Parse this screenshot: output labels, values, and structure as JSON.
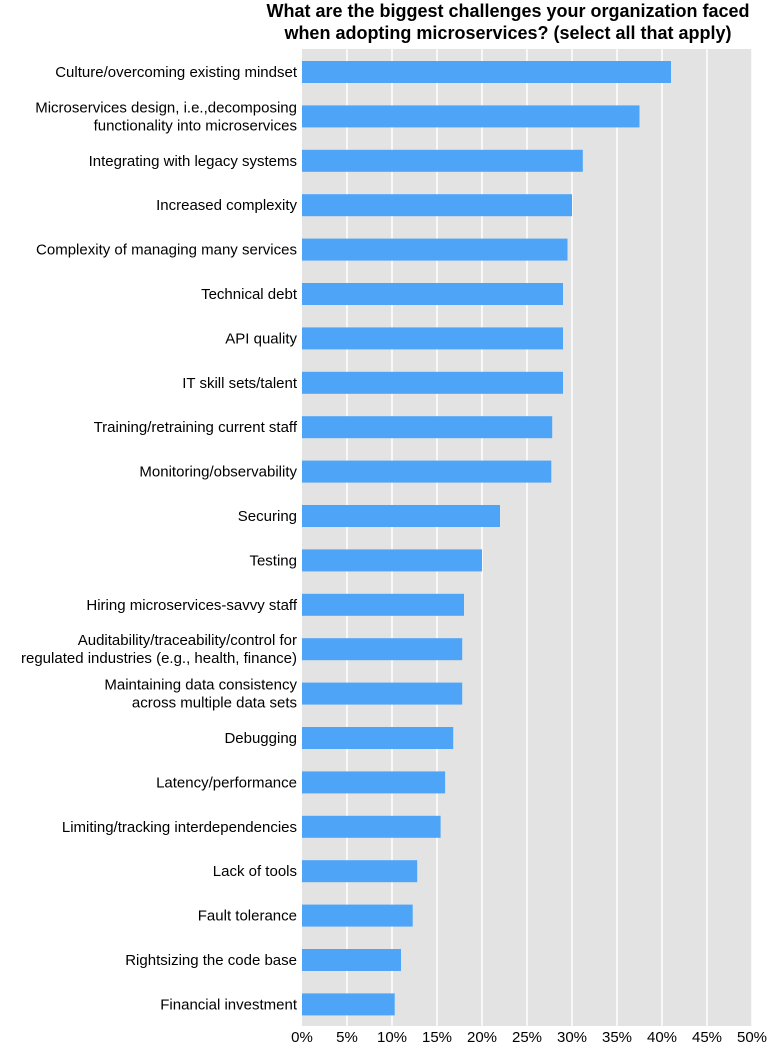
{
  "chart_data": {
    "type": "bar",
    "orientation": "horizontal",
    "title_lines": [
      "What are the biggest challenges your organization faced",
      "when adopting microservices? (select all that apply)"
    ],
    "categories": [
      [
        "Culture/overcoming existing mindset"
      ],
      [
        "Microservices design, i.e.,decomposing",
        "functionality into microservices"
      ],
      [
        "Integrating with legacy systems"
      ],
      [
        "Increased complexity"
      ],
      [
        "Complexity of managing many services"
      ],
      [
        "Technical debt"
      ],
      [
        "API quality"
      ],
      [
        "IT skill sets/talent"
      ],
      [
        "Training/retraining current staff"
      ],
      [
        "Monitoring/observability"
      ],
      [
        "Securing"
      ],
      [
        "Testing"
      ],
      [
        "Hiring microservices-savvy staff"
      ],
      [
        "Auditability/traceability/control for",
        "regulated industries (e.g., health, finance)"
      ],
      [
        "Maintaining data consistency",
        "across multiple data sets"
      ],
      [
        "Debugging"
      ],
      [
        "Latency/performance"
      ],
      [
        "Limiting/tracking interdependencies"
      ],
      [
        "Lack of tools"
      ],
      [
        "Fault tolerance"
      ],
      [
        "Rightsizing the code base"
      ],
      [
        "Financial investment"
      ]
    ],
    "values": [
      41,
      37.5,
      31.2,
      30,
      29.5,
      29,
      29,
      29,
      27.8,
      27.7,
      22,
      20,
      18,
      17.8,
      17.8,
      16.8,
      15.9,
      15.4,
      12.8,
      12.3,
      11,
      10.3
    ],
    "xlim": [
      0,
      50
    ],
    "xticks": [
      "0%",
      "5%",
      "10%",
      "15%",
      "20%",
      "25%",
      "30%",
      "35%",
      "40%",
      "45%",
      "50%"
    ],
    "xtick_values": [
      0,
      5,
      10,
      15,
      20,
      25,
      30,
      35,
      40,
      45,
      50
    ],
    "grid": true,
    "colors": {
      "bar": "#4ea5f7",
      "plot_bg": "#e3e3e3",
      "grid": "#ffffff"
    }
  }
}
